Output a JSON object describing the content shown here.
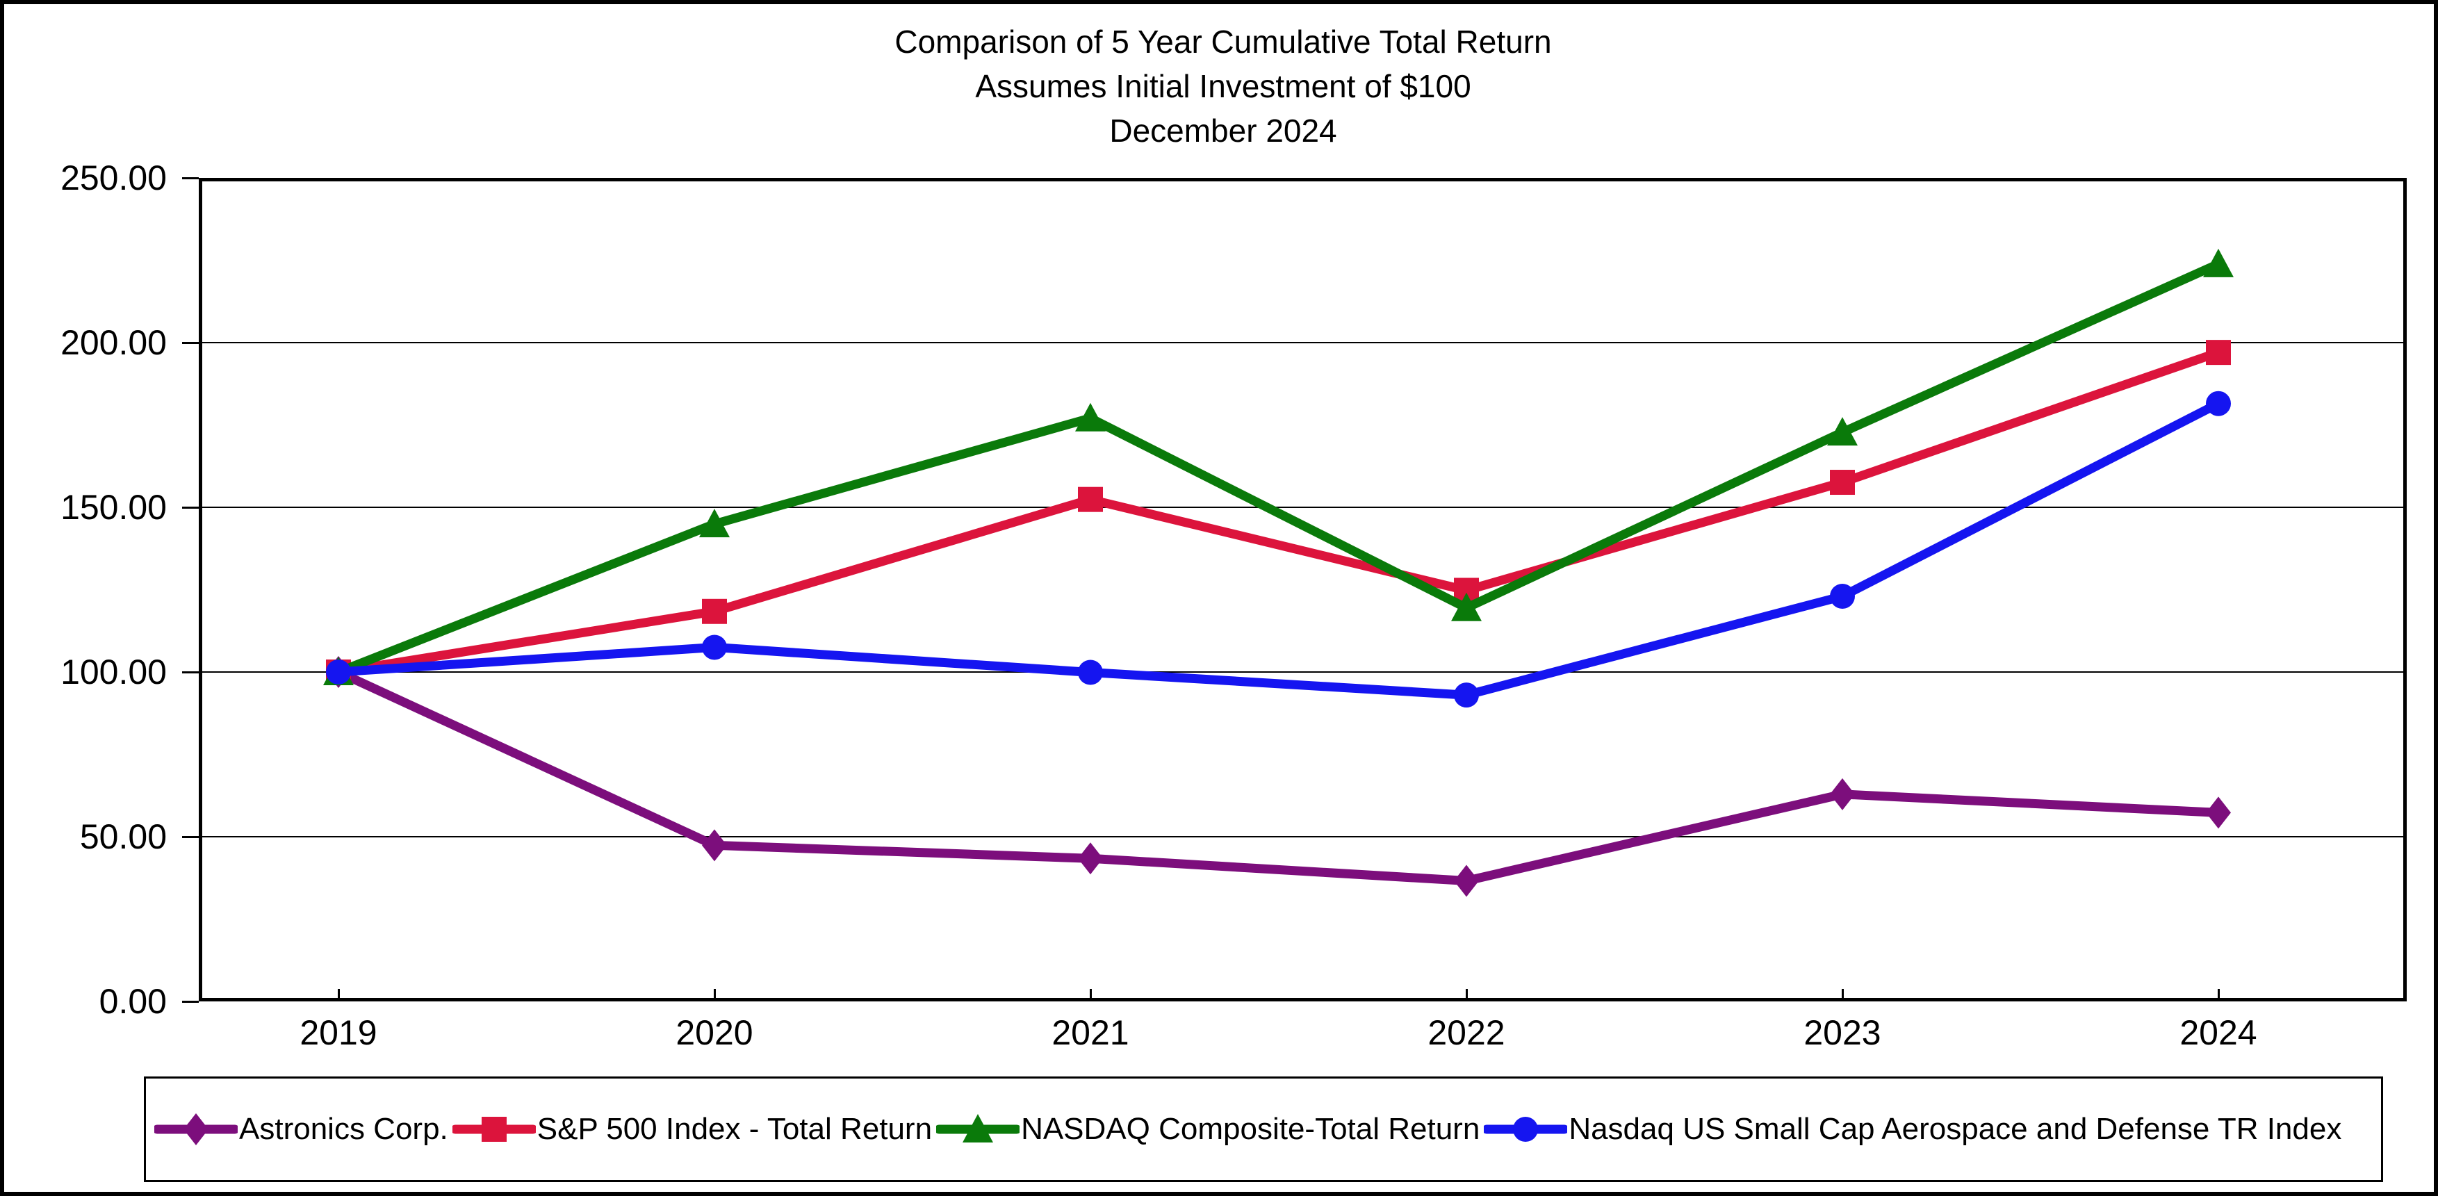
{
  "title": {
    "line1": "Comparison of 5 Year Cumulative Total Return",
    "line2": "Assumes Initial Investment of $100",
    "line3": "December 2024"
  },
  "chart_data": {
    "type": "line",
    "categories": [
      "2019",
      "2020",
      "2021",
      "2022",
      "2023",
      "2024"
    ],
    "series": [
      {
        "name": "Astronics Corp.",
        "color": "#7C0E7C",
        "marker": "diamond",
        "values": [
          100.0,
          47.4,
          43.4,
          36.6,
          62.9,
          57.3
        ]
      },
      {
        "name": "S&P 500 Index - Total Return",
        "color": "#DC143C",
        "marker": "square",
        "values": [
          100.0,
          118.4,
          152.39,
          124.79,
          157.59,
          197.02
        ]
      },
      {
        "name": "NASDAQ Composite-Total Return",
        "color": "#0A7A0A",
        "marker": "triangle",
        "values": [
          100.0,
          144.92,
          177.06,
          119.45,
          172.77,
          223.87
        ]
      },
      {
        "name": "Nasdaq US Small Cap Aerospace and Defense TR Index",
        "color": "#1515F0",
        "marker": "circle",
        "values": [
          100.0,
          107.5,
          99.9,
          93.0,
          123.0,
          181.5
        ]
      }
    ],
    "title": "Comparison of 5 Year Cumulative Total Return Assumes Initial Investment of $100 December 2024",
    "xlabel": "",
    "ylabel": "",
    "ylim": [
      0,
      250
    ],
    "ytick_values": [
      250,
      200,
      150,
      100,
      50,
      0
    ],
    "ytick_labels": [
      "250.00",
      "200.00",
      "150.00",
      "100.00",
      "50.00",
      "0.00"
    ],
    "grid": true,
    "legend_position": "bottom"
  }
}
